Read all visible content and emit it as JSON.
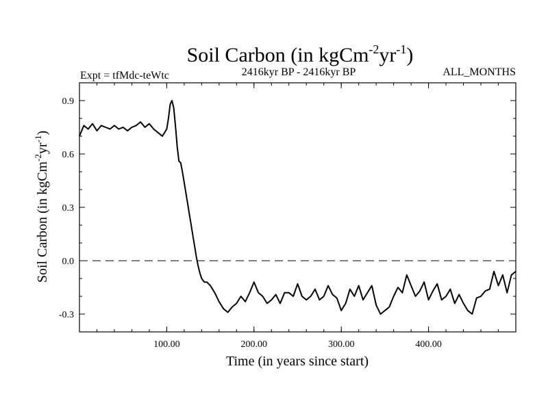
{
  "chart_data": {
    "type": "line",
    "title": {
      "prefix": "Soil Carbon (in kgCm",
      "sup1": "-2",
      "middle": "yr",
      "sup2": "-1",
      "suffix": ")"
    },
    "header": {
      "left": "Expt = tfMdc-teWtc",
      "center": "2416kyr BP - 2416kyr BP",
      "right": "ALL_MONTHS"
    },
    "xlabel": "Time (in years since start)",
    "ylabel": {
      "prefix": "Soil Carbon (in kgCm",
      "sup1": "-2",
      "middle": "yr",
      "sup2": "-1",
      "suffix": ")"
    },
    "xlim": [
      0,
      500
    ],
    "ylim": [
      -0.4,
      1.0
    ],
    "xticks": [
      {
        "value": 100,
        "label": "100.00"
      },
      {
        "value": 200,
        "label": "200.00"
      },
      {
        "value": 300,
        "label": "300.00"
      },
      {
        "value": 400,
        "label": "400.00"
      }
    ],
    "yticks": [
      {
        "value": 0.9,
        "label": "0.9"
      },
      {
        "value": 0.6,
        "label": "0.6"
      },
      {
        "value": 0.3,
        "label": "0.3"
      },
      {
        "value": 0.0,
        "label": "0.0"
      },
      {
        "value": -0.3,
        "label": "-0.3"
      }
    ],
    "zero_line": 0.0,
    "series": [
      {
        "name": "soil carbon",
        "color": "#000000",
        "x": [
          0,
          5,
          10,
          15,
          20,
          25,
          30,
          35,
          40,
          45,
          50,
          55,
          60,
          65,
          70,
          75,
          80,
          85,
          90,
          95,
          100,
          102,
          104,
          106,
          108,
          110,
          112,
          114,
          116,
          118,
          120,
          122,
          124,
          126,
          128,
          130,
          132,
          134,
          136,
          138,
          140,
          143,
          146,
          150,
          155,
          160,
          165,
          170,
          175,
          180,
          185,
          190,
          195,
          200,
          205,
          210,
          215,
          220,
          225,
          230,
          235,
          240,
          245,
          250,
          255,
          260,
          265,
          270,
          275,
          280,
          285,
          290,
          295,
          300,
          305,
          310,
          315,
          320,
          325,
          330,
          335,
          340,
          345,
          350,
          355,
          360,
          365,
          370,
          375,
          380,
          385,
          390,
          395,
          400,
          405,
          410,
          415,
          420,
          425,
          430,
          435,
          440,
          445,
          450,
          455,
          460,
          465,
          470,
          475,
          480,
          485,
          490,
          495,
          500
        ],
        "values": [
          0.7,
          0.76,
          0.74,
          0.77,
          0.73,
          0.76,
          0.75,
          0.74,
          0.76,
          0.74,
          0.75,
          0.73,
          0.75,
          0.76,
          0.78,
          0.75,
          0.77,
          0.74,
          0.72,
          0.7,
          0.74,
          0.8,
          0.88,
          0.9,
          0.86,
          0.76,
          0.64,
          0.56,
          0.55,
          0.5,
          0.44,
          0.38,
          0.32,
          0.26,
          0.2,
          0.14,
          0.08,
          0.02,
          -0.03,
          -0.07,
          -0.1,
          -0.12,
          -0.12,
          -0.14,
          -0.18,
          -0.23,
          -0.27,
          -0.29,
          -0.26,
          -0.24,
          -0.2,
          -0.23,
          -0.18,
          -0.12,
          -0.18,
          -0.2,
          -0.24,
          -0.22,
          -0.19,
          -0.24,
          -0.18,
          -0.18,
          -0.2,
          -0.13,
          -0.2,
          -0.22,
          -0.2,
          -0.16,
          -0.22,
          -0.2,
          -0.14,
          -0.19,
          -0.21,
          -0.28,
          -0.24,
          -0.16,
          -0.2,
          -0.14,
          -0.22,
          -0.18,
          -0.14,
          -0.25,
          -0.3,
          -0.28,
          -0.26,
          -0.2,
          -0.15,
          -0.18,
          -0.08,
          -0.14,
          -0.2,
          -0.17,
          -0.12,
          -0.22,
          -0.17,
          -0.13,
          -0.22,
          -0.2,
          -0.16,
          -0.24,
          -0.19,
          -0.24,
          -0.28,
          -0.3,
          -0.21,
          -0.2,
          -0.17,
          -0.16,
          -0.06,
          -0.14,
          -0.08,
          -0.18,
          -0.08,
          -0.06
        ]
      }
    ]
  }
}
